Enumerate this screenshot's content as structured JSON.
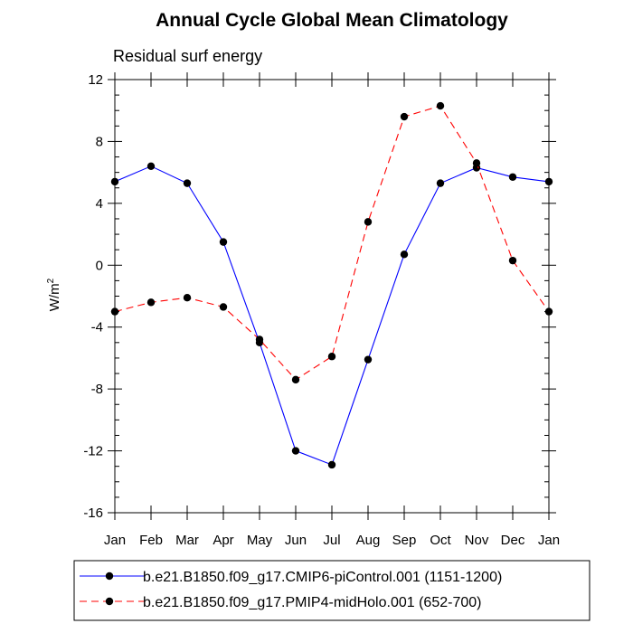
{
  "chart_data": {
    "type": "line",
    "title": "Annual Cycle Global Mean Climatology",
    "subtitle": "Residual surf energy",
    "xlabel": "",
    "ylabel": "W/m",
    "ylabel_superscript": "2",
    "ylim": [
      -16,
      12
    ],
    "yticks": [
      -16,
      -12,
      -8,
      -4,
      0,
      4,
      8,
      12
    ],
    "yminor_step": 1,
    "categories": [
      "Jan",
      "Feb",
      "Mar",
      "Apr",
      "May",
      "Jun",
      "Jul",
      "Aug",
      "Sep",
      "Oct",
      "Nov",
      "Dec",
      "Jan"
    ],
    "legend_position": "bottom",
    "series": [
      {
        "name": "b.e21.B1850.f09_g17.CMIP6-piControl.001 (1151-1200)",
        "color": "#0000ff",
        "dash": "solid",
        "values": [
          5.4,
          6.4,
          5.3,
          1.5,
          -5.0,
          -12.0,
          -12.9,
          -6.1,
          0.7,
          5.3,
          6.3,
          5.7,
          5.4
        ]
      },
      {
        "name": "b.e21.B1850.f09_g17.PMIP4-midHolo.001 (652-700)",
        "color": "#ff0000",
        "dash": "dashed",
        "values": [
          -3.0,
          -2.4,
          -2.1,
          -2.7,
          -4.8,
          -7.4,
          -5.9,
          2.8,
          9.6,
          10.3,
          6.6,
          0.3,
          -3.0
        ]
      }
    ]
  }
}
